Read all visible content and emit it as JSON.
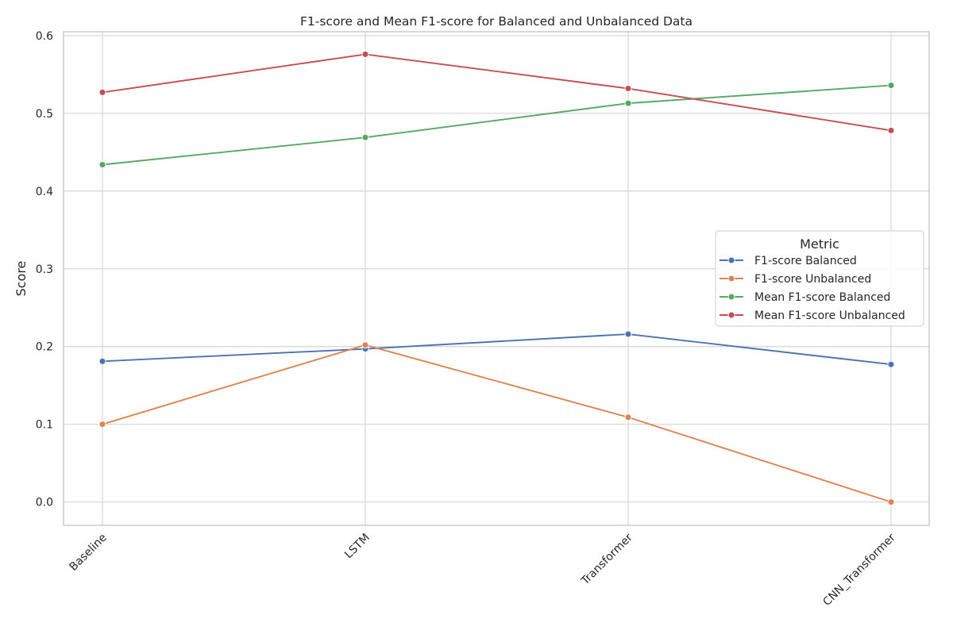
{
  "chart_data": {
    "type": "line",
    "title": "F1-score and Mean F1-score for Balanced and Unbalanced Data",
    "xlabel": "",
    "ylabel": "Score",
    "categories": [
      "Baseline",
      "LSTM",
      "Transformer",
      "CNN_Transformer"
    ],
    "ylim": [
      -0.03,
      0.605
    ],
    "yticks": [
      0.0,
      0.1,
      0.2,
      0.3,
      0.4,
      0.5,
      0.6
    ],
    "ytick_labels": [
      "0.0",
      "0.1",
      "0.2",
      "0.3",
      "0.4",
      "0.5",
      "0.6"
    ],
    "grid": true,
    "legend": {
      "title": "Metric",
      "placement": "center-right"
    },
    "series": [
      {
        "name": "F1-score Balanced",
        "color": "#4c72b0",
        "values": [
          0.181,
          0.197,
          0.216,
          0.177
        ]
      },
      {
        "name": "F1-score Unbalanced",
        "color": "#dd8452",
        "values": [
          0.1,
          0.202,
          0.109,
          0.0
        ]
      },
      {
        "name": "Mean F1-score Balanced",
        "color": "#55a868",
        "values": [
          0.434,
          0.469,
          0.513,
          0.536
        ]
      },
      {
        "name": "Mean F1-score Unbalanced",
        "color": "#c44e52",
        "values": [
          0.527,
          0.576,
          0.532,
          0.478
        ]
      }
    ]
  }
}
